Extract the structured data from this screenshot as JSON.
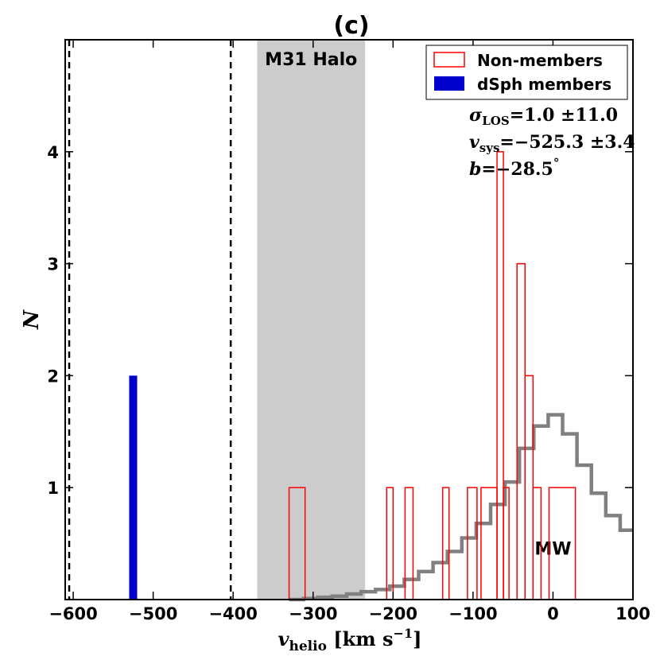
{
  "chart_data": {
    "type": "histogram",
    "title": "(c)",
    "xlabel_main": "v",
    "xlabel_sub": "helio",
    "xlabel_units": " [km s",
    "xlabel_exp": "−1",
    "xlabel_close": "]",
    "ylabel": "N",
    "xlim": [
      -610,
      100
    ],
    "ylim": [
      0,
      5
    ],
    "x_ticks": [
      -600,
      -500,
      -400,
      -300,
      -200,
      -100,
      0,
      100
    ],
    "x_tick_labels": [
      "−600",
      "−500",
      "−400",
      "−300",
      "−200",
      "−100",
      "0",
      "100"
    ],
    "y_ticks": [
      1,
      2,
      3,
      4
    ],
    "y_tick_labels": [
      "1",
      "2",
      "3",
      "4"
    ],
    "m31_halo_band": {
      "x0": -370,
      "x1": -235,
      "label": "M31 Halo",
      "color": "#cccccc"
    },
    "dashed_lines": [
      -605,
      -403
    ],
    "dsph_members": {
      "name": "dSph members",
      "color": "#0000cc",
      "bins": [
        {
          "x0": -530,
          "x1": -520,
          "count": 2
        }
      ]
    },
    "non_members": {
      "name": "Non-members",
      "color": "#ff0000",
      "bins": [
        {
          "x0": -330,
          "x1": -310,
          "count": 1
        },
        {
          "x0": -208,
          "x1": -200,
          "count": 1
        },
        {
          "x0": -185,
          "x1": -175,
          "count": 1
        },
        {
          "x0": -138,
          "x1": -130,
          "count": 1
        },
        {
          "x0": -107,
          "x1": -95,
          "count": 1
        },
        {
          "x0": -90,
          "x1": -70,
          "count": 1
        },
        {
          "x0": -70,
          "x1": -62,
          "count": 4
        },
        {
          "x0": -62,
          "x1": -55,
          "count": 1
        },
        {
          "x0": -45,
          "x1": -35,
          "count": 3
        },
        {
          "x0": -35,
          "x1": -25,
          "count": 2
        },
        {
          "x0": -25,
          "x1": -15,
          "count": 1
        },
        {
          "x0": -5,
          "x1": 28,
          "count": 1
        }
      ]
    },
    "mw_model": {
      "name": "MW",
      "color": "#808080",
      "step_x": [
        -330,
        -312,
        -294,
        -276,
        -258,
        -240,
        -222,
        -204,
        -186,
        -168,
        -150,
        -132,
        -114,
        -96,
        -78,
        -60,
        -42,
        -24,
        -6,
        12,
        30,
        48,
        66,
        84,
        100
      ],
      "step_y": [
        0.0,
        0.01,
        0.02,
        0.03,
        0.05,
        0.07,
        0.09,
        0.12,
        0.18,
        0.25,
        0.33,
        0.43,
        0.55,
        0.68,
        0.85,
        1.05,
        1.35,
        1.55,
        1.65,
        1.48,
        1.2,
        0.95,
        0.75,
        0.62,
        0.62
      ]
    },
    "legend_position": "top-right",
    "stats": {
      "sigma_sym": "σ",
      "sigma_sub": "LOS",
      "sigma_value": "=1.0 ±11.0",
      "vsys_sym": "v",
      "vsys_sub": "sys",
      "vsys_value": "=−525.3 ±3.4",
      "b_sym": "b",
      "b_value": "=−28.5",
      "b_unit": "°"
    }
  }
}
